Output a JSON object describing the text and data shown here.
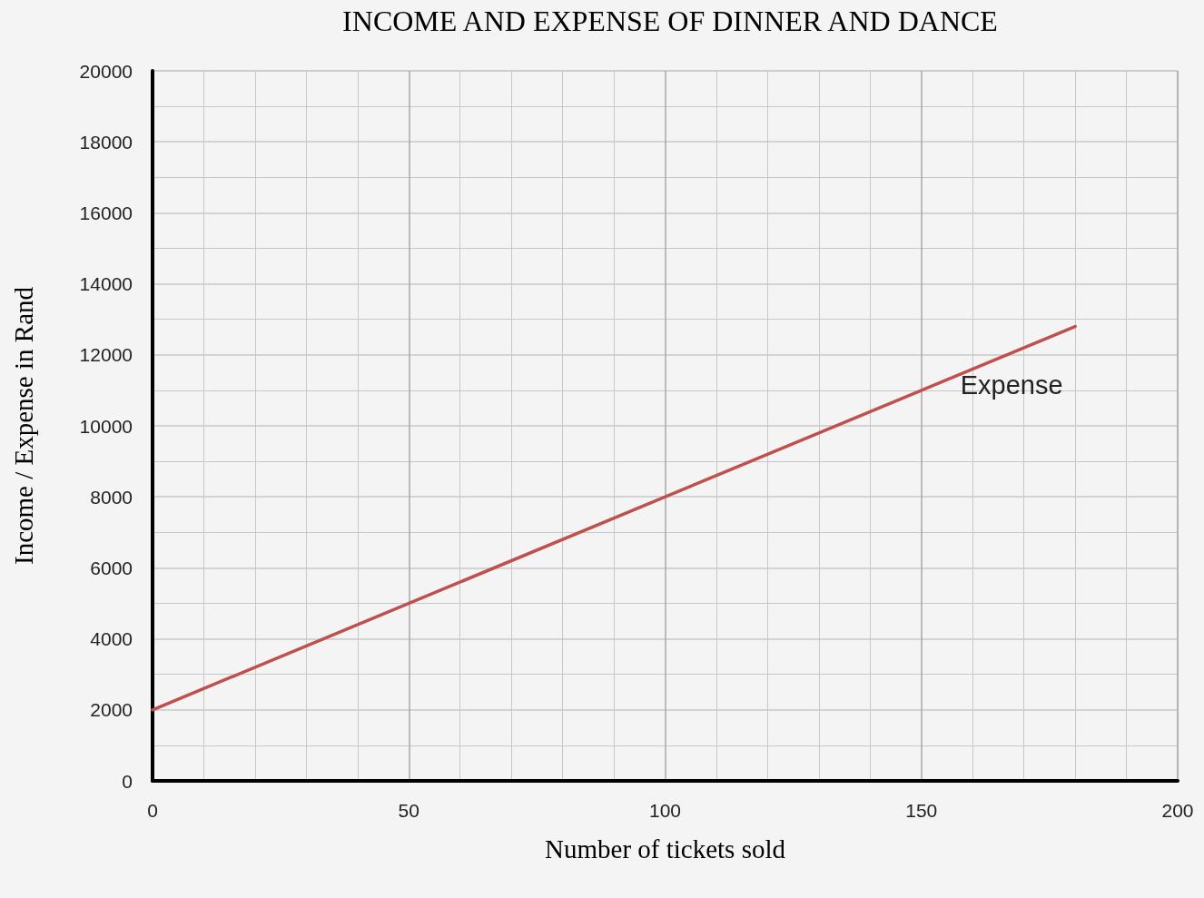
{
  "chart_data": {
    "type": "line",
    "title": "INCOME AND EXPENSE OF DINNER AND DANCE",
    "xlabel": "Number of tickets sold",
    "ylabel": "Income / Expense in Rand",
    "x": [
      0,
      180
    ],
    "series": [
      {
        "name": "Expense",
        "color": "#c0504d",
        "values": [
          2000,
          12800
        ]
      }
    ],
    "xlim": [
      0,
      200
    ],
    "xticks": [
      0,
      50,
      100,
      150,
      200
    ],
    "ylim": [
      0,
      20000
    ],
    "yticks": [
      0,
      2000,
      4000,
      6000,
      8000,
      10000,
      12000,
      14000,
      16000,
      18000,
      20000
    ],
    "grid": true,
    "marker": "none",
    "legend": false
  }
}
